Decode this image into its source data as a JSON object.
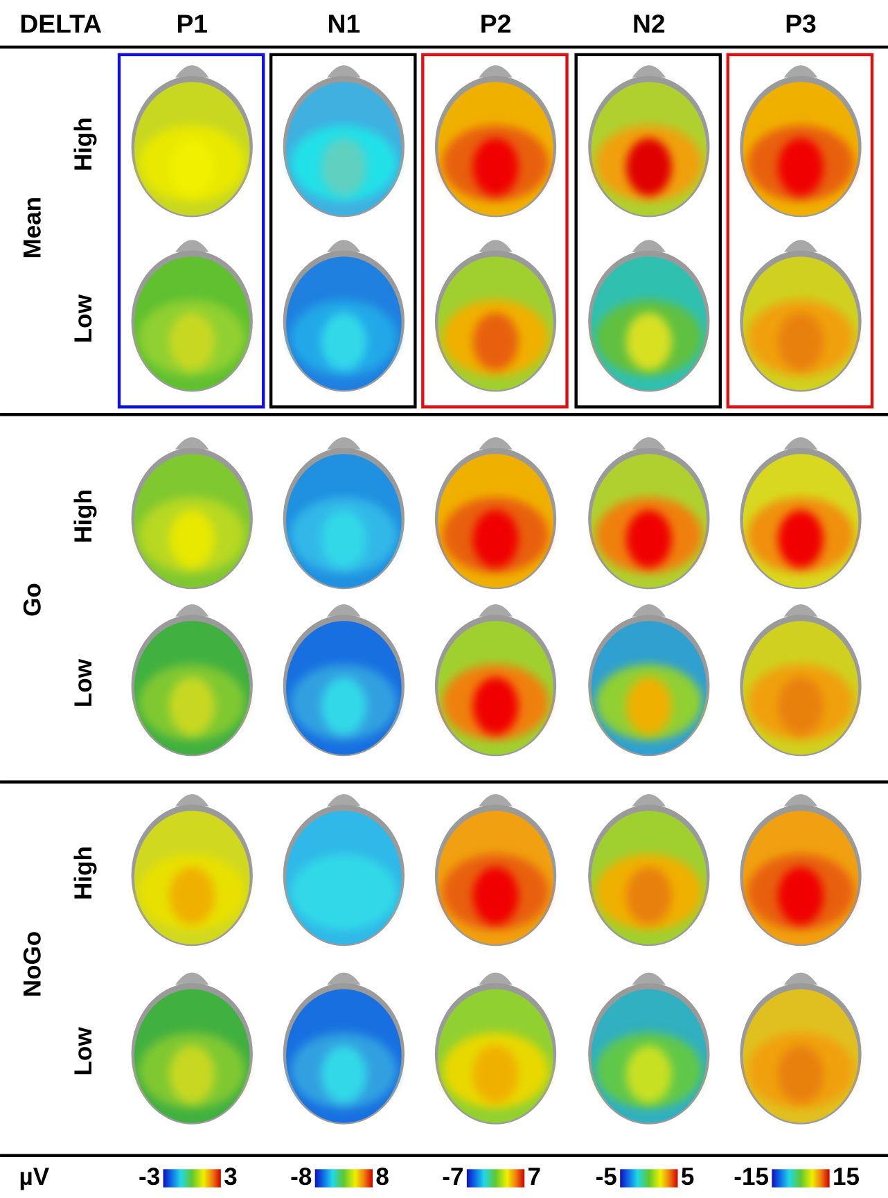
{
  "header": {
    "title": "DELTA",
    "columns": [
      "P1",
      "N1",
      "P2",
      "N2",
      "P3"
    ]
  },
  "groups": [
    {
      "label": "Mean",
      "rows": [
        "High",
        "Low"
      ]
    },
    {
      "label": "Go",
      "rows": [
        "High",
        "Low"
      ]
    },
    {
      "label": "NoGo",
      "rows": [
        "High",
        "Low"
      ]
    }
  ],
  "scale": {
    "unit": "µV",
    "ranges": [
      [
        -3,
        3
      ],
      [
        -8,
        8
      ],
      [
        -7,
        7
      ],
      [
        -5,
        5
      ],
      [
        -15,
        15
      ]
    ]
  }
}
